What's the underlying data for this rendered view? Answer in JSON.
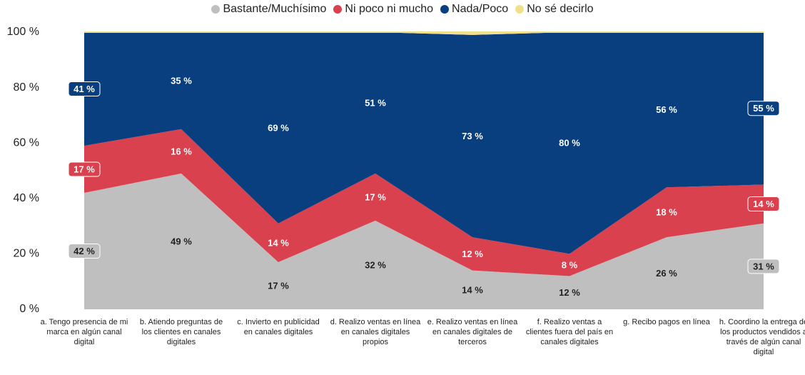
{
  "chart_data": {
    "type": "area_stacked",
    "categories": [
      "a. Tengo presencia de mi marca en algún canal digital",
      "b. Atiendo preguntas de los clientes en canales digitales",
      "c. Invierto en publicidad en canales digitales",
      "d. Realizo ventas en línea en canales digitales propios",
      "e. Realizo ventas en línea en canales digitales de terceros",
      "f. Realizo ventas a clientes fuera del país en canales digitales",
      "g. Recibo pagos en línea",
      "h. Coordino la entrega de los productos vendidos a través de algún canal digital"
    ],
    "series": [
      {
        "name": "Bastante/Muchísimo",
        "color": "#bfbfbf",
        "values": [
          42,
          49,
          17,
          32,
          14,
          12,
          26,
          31
        ],
        "value_labels": [
          "42 %",
          "49 %",
          "17 %",
          "32 %",
          "14 %",
          "12 %",
          "26 %",
          "31 %"
        ]
      },
      {
        "name": "Ni poco ni mucho",
        "color": "#d9414f",
        "values": [
          17,
          16,
          14,
          17,
          12,
          8,
          18,
          14
        ],
        "value_labels": [
          "17 %",
          "16 %",
          "14 %",
          "17 %",
          "12 %",
          "8 %",
          "18 %",
          "14 %"
        ]
      },
      {
        "name": "Nada/Poco",
        "color": "#0a3f7f",
        "values": [
          41,
          35,
          69,
          51,
          73,
          80,
          56,
          55
        ],
        "value_labels": [
          "41 %",
          "35 %",
          "69 %",
          "51 %",
          "73 %",
          "80 %",
          "56 %",
          "55 %"
        ]
      },
      {
        "name": "No sé decirlo",
        "color": "#f2df8c",
        "values": [
          0,
          0,
          0,
          0,
          1,
          0,
          0,
          0
        ]
      }
    ],
    "ylim": [
      0,
      100
    ],
    "yticks": [
      {
        "value": 0,
        "label": "0 %"
      },
      {
        "value": 20,
        "label": "20 %"
      },
      {
        "value": 40,
        "label": "40 %"
      },
      {
        "value": 60,
        "label": "60 %"
      },
      {
        "value": 80,
        "label": "80 %"
      },
      {
        "value": 100,
        "label": "100 %"
      }
    ],
    "grid": false,
    "legend": "top"
  }
}
